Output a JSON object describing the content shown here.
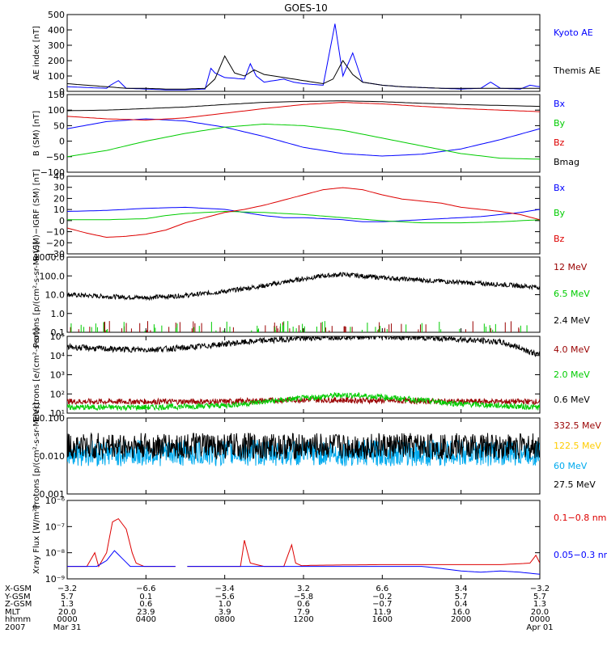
{
  "title": "GOES-10",
  "chart_data": [
    {
      "type": "line",
      "ylabel": "AE index [nT]",
      "ylim": [
        0,
        500
      ],
      "yticks": [
        "0",
        "100",
        "200",
        "300",
        "400",
        "500"
      ],
      "log": false,
      "series": [
        {
          "name": "Kyoto AE",
          "color": "#0000ff",
          "x": [
            0,
            1,
            2,
            2.2,
            2.6,
            3,
            4,
            5,
            6,
            7,
            7.1,
            7.3,
            7.5,
            8,
            9,
            9.3,
            9.6,
            10,
            11,
            11.5,
            12,
            13,
            13.6,
            14,
            14.5,
            15,
            16,
            17,
            18,
            19,
            20,
            21,
            21.5,
            22,
            23,
            23.5,
            24
          ],
          "y": [
            30,
            25,
            20,
            40,
            70,
            20,
            15,
            10,
            10,
            15,
            60,
            150,
            120,
            90,
            80,
            180,
            100,
            60,
            80,
            60,
            50,
            40,
            440,
            100,
            250,
            60,
            40,
            30,
            25,
            20,
            15,
            20,
            60,
            20,
            15,
            40,
            30
          ]
        },
        {
          "name": "Themis AE",
          "color": "#000000",
          "x": [
            0,
            1,
            2,
            3,
            4,
            5,
            6,
            7,
            7.5,
            8,
            8.5,
            9,
            9.5,
            10,
            11,
            12,
            12.5,
            13,
            13.5,
            14,
            14.5,
            15,
            16,
            17,
            18,
            19,
            20,
            21,
            22,
            23,
            24
          ],
          "y": [
            50,
            40,
            30,
            20,
            20,
            15,
            15,
            20,
            80,
            230,
            120,
            100,
            140,
            110,
            90,
            70,
            60,
            50,
            80,
            200,
            110,
            60,
            40,
            30,
            25,
            20,
            20,
            20,
            20,
            20,
            20
          ]
        }
      ]
    },
    {
      "type": "line",
      "ylabel": "B (SM) [nT]",
      "ylim": [
        -100,
        150
      ],
      "yticks": [
        "−100",
        "−50",
        "0",
        "50",
        "100",
        "150"
      ],
      "log": false,
      "series": [
        {
          "name": "Bx",
          "color": "#0000ff",
          "x": [
            0,
            2,
            4,
            6,
            8,
            10,
            12,
            14,
            16,
            18,
            20,
            22,
            24
          ],
          "y": [
            40,
            63,
            72,
            65,
            45,
            15,
            -20,
            -40,
            -48,
            -42,
            -25,
            5,
            40
          ]
        },
        {
          "name": "By",
          "color": "#00cc00",
          "x": [
            0,
            2,
            4,
            6,
            8,
            10,
            12,
            14,
            16,
            18,
            20,
            22,
            24
          ],
          "y": [
            -50,
            -30,
            0,
            25,
            45,
            55,
            50,
            35,
            10,
            -15,
            -40,
            -55,
            -58
          ]
        },
        {
          "name": "Bz",
          "color": "#dd0000",
          "x": [
            0,
            2,
            4,
            6,
            8,
            10,
            12,
            14,
            16,
            18,
            20,
            22,
            24
          ],
          "y": [
            80,
            72,
            68,
            75,
            90,
            105,
            118,
            125,
            120,
            112,
            105,
            100,
            95
          ]
        },
        {
          "name": "Bmag",
          "color": "#000000",
          "x": [
            0,
            2,
            4,
            6,
            8,
            10,
            12,
            14,
            16,
            18,
            20,
            22,
            24
          ],
          "y": [
            98,
            100,
            105,
            110,
            118,
            125,
            128,
            130,
            127,
            122,
            118,
            115,
            112
          ]
        }
      ]
    },
    {
      "type": "line",
      "ylabel": "B (SM)−IGRF (SM) [nT]",
      "ylim": [
        -35,
        40
      ],
      "yticks": [
        "−30",
        "−20",
        "−10",
        "0",
        "10",
        "20",
        "30",
        "40"
      ],
      "log": false,
      "series": [
        {
          "name": "Bx",
          "color": "#0000ff",
          "x": [
            0,
            2,
            4,
            6,
            8,
            9,
            10,
            11,
            12,
            13,
            14,
            15,
            16,
            17,
            18,
            19,
            20,
            21,
            22,
            23,
            24
          ],
          "y": [
            6,
            7,
            9,
            10,
            8,
            5,
            2,
            0,
            0,
            -1,
            -2,
            -4,
            -4,
            -3,
            -2,
            -1,
            0,
            1,
            3,
            5,
            8
          ]
        },
        {
          "name": "By",
          "color": "#00cc00",
          "x": [
            0,
            2,
            4,
            5,
            6,
            8,
            10,
            12,
            14,
            16,
            18,
            20,
            22,
            23,
            24
          ],
          "y": [
            -2,
            -2,
            -1,
            2,
            4,
            6,
            5,
            3,
            0,
            -3,
            -5,
            -5,
            -4,
            -3,
            -2
          ]
        },
        {
          "name": "Bz",
          "color": "#dd0000",
          "x": [
            0,
            1,
            2,
            3,
            4,
            5,
            6,
            7,
            8,
            9,
            10,
            11,
            12,
            13,
            14,
            15,
            16,
            17,
            18,
            19,
            20,
            21,
            22,
            23,
            24
          ],
          "y": [
            -10,
            -15,
            -19,
            -18,
            -16,
            -12,
            -5,
            0,
            5,
            8,
            12,
            17,
            22,
            27,
            29,
            27,
            22,
            18,
            16,
            14,
            10,
            8,
            6,
            3,
            -2
          ]
        }
      ]
    },
    {
      "type": "line",
      "ylabel": "Protons [p/(cm²-s-sr-MeV)]",
      "ylim": [
        0.1,
        1000
      ],
      "yticks": [
        "0.1",
        "1.0",
        "10.0",
        "100.0",
        "1000.0"
      ],
      "log": true,
      "series": [
        {
          "name": "12 MeV",
          "color": "#990000",
          "x": [],
          "y": []
        },
        {
          "name": "6.5 MeV",
          "color": "#00cc00",
          "x": [],
          "y": []
        },
        {
          "name": "2.4 MeV",
          "color": "#000000",
          "x": [
            0,
            2,
            4,
            6,
            8,
            10,
            12,
            13,
            14,
            16,
            18,
            20,
            22,
            24
          ],
          "y": [
            10,
            8,
            7,
            9,
            15,
            30,
            70,
            100,
            120,
            80,
            60,
            45,
            35,
            25
          ]
        }
      ]
    },
    {
      "type": "line",
      "ylabel": "Electrons [e/(cm²-s-sr)]",
      "ylim": [
        10,
        100000
      ],
      "yticks": [
        "10¹",
        "10²",
        "10³",
        "10⁴",
        "10⁵"
      ],
      "log": true,
      "series": [
        {
          "name": "4.0 MeV",
          "color": "#990000",
          "x": [
            0,
            4,
            8,
            12,
            16,
            20,
            24
          ],
          "y": [
            40,
            40,
            40,
            50,
            45,
            40,
            40
          ]
        },
        {
          "name": "2.0 MeV",
          "color": "#00cc00",
          "x": [
            0,
            4,
            8,
            12,
            14,
            16,
            20,
            24
          ],
          "y": [
            20,
            20,
            25,
            60,
            90,
            70,
            30,
            20
          ]
        },
        {
          "name": "0.6 MeV",
          "color": "#000000",
          "x": [
            0,
            2,
            4,
            6,
            8,
            10,
            12,
            14,
            16,
            18,
            20,
            22,
            23,
            24
          ],
          "y": [
            28000,
            22000,
            20000,
            25000,
            40000,
            60000,
            80000,
            95000,
            95000,
            85000,
            70000,
            50000,
            25000,
            10000
          ]
        }
      ]
    },
    {
      "type": "line",
      "ylabel": "Protons [p/(cm²-s-sr-MeV)]",
      "ylim": [
        0.001,
        0.1
      ],
      "yticks": [
        "0.001",
        "0.010",
        "0.100"
      ],
      "log": true,
      "series": [
        {
          "name": "332.5 MeV",
          "color": "#990000",
          "x": [],
          "y": []
        },
        {
          "name": "122.5 MeV",
          "color": "#ffcc00",
          "x": [],
          "y": []
        },
        {
          "name": "60 MeV",
          "color": "#00aaee",
          "x": [
            0,
            24
          ],
          "y": [
            0.012,
            0.012
          ]
        },
        {
          "name": "27.5 MeV",
          "color": "#000000",
          "x": [
            0,
            24
          ],
          "y": [
            0.018,
            0.018
          ]
        }
      ]
    },
    {
      "type": "line",
      "ylabel": "Xray Flux [W/m²]",
      "ylim": [
        1e-09,
        1e-06
      ],
      "yticks": [
        "10⁻⁹",
        "10⁻⁸",
        "10⁻⁷",
        "10⁻⁶"
      ],
      "log": true,
      "series": [
        {
          "name": "0.1−0.8 nm",
          "color": "#dd0000",
          "x": [
            0,
            1.0,
            1.4,
            1.6,
            2.0,
            2.3,
            2.6,
            3.0,
            3.3,
            3.5,
            3.9,
            5.5,
            6.0,
            6.1,
            7,
            8,
            8.8,
            9.0,
            9.3,
            10,
            11,
            11.4,
            11.6,
            11.9,
            12.5,
            14,
            16,
            18,
            20,
            22,
            23.5,
            23.8,
            24
          ],
          "y": [
            3e-09,
            3e-09,
            1e-08,
            3e-09,
            1e-08,
            1.5e-07,
            2e-07,
            8e-08,
            1e-08,
            4e-09,
            3e-09,
            3e-09,
            null,
            3e-09,
            3e-09,
            3e-09,
            3e-09,
            3e-08,
            4e-09,
            3e-09,
            3e-09,
            2e-08,
            4e-09,
            3.2e-09,
            3.3e-09,
            3.4e-09,
            3.5e-09,
            3.5e-09,
            3.5e-09,
            3.5e-09,
            4e-09,
            8e-09,
            4e-09
          ]
        },
        {
          "name": "0.05−0.3 nm",
          "color": "#0000ff",
          "x": [
            0,
            1.5,
            2.0,
            2.4,
            2.8,
            3.2,
            3.5,
            5.5,
            6.0,
            6.1,
            8,
            10,
            12,
            14,
            16,
            17,
            18,
            19,
            20,
            21,
            22,
            23,
            24
          ],
          "y": [
            3e-09,
            3e-09,
            5e-09,
            1.2e-08,
            6e-09,
            3e-09,
            3e-09,
            3e-09,
            null,
            3e-09,
            3e-09,
            3e-09,
            3e-09,
            3e-09,
            3e-09,
            3e-09,
            3e-09,
            2.5e-09,
            2e-09,
            1.8e-09,
            2e-09,
            1.8e-09,
            1.5e-09
          ]
        }
      ]
    }
  ],
  "x_axis": {
    "row_labels": [
      "X-GSM",
      "Y-GSM",
      "Z-GSM",
      "MLT",
      "hhmm",
      "2007"
    ],
    "columns": [
      [
        "−3.2",
        "5.7",
        "1.3",
        "20.0",
        "0000",
        "Mar 31"
      ],
      [
        "−6.6",
        "0.1",
        "0.6",
        "23.9",
        "0400",
        ""
      ],
      [
        "−3.4",
        "−5.6",
        "1.0",
        "3.9",
        "0800",
        ""
      ],
      [
        "3.2",
        "−5.8",
        "0.6",
        "7.9",
        "1200",
        ""
      ],
      [
        "6.6",
        "−0.2",
        "−0.7",
        "11.9",
        "1600",
        ""
      ],
      [
        "3.4",
        "5.7",
        "0.4",
        "16.0",
        "2000",
        ""
      ],
      [
        "−3.2",
        "5.7",
        "1.3",
        "20.0",
        "0000",
        "Apr 01"
      ]
    ]
  }
}
